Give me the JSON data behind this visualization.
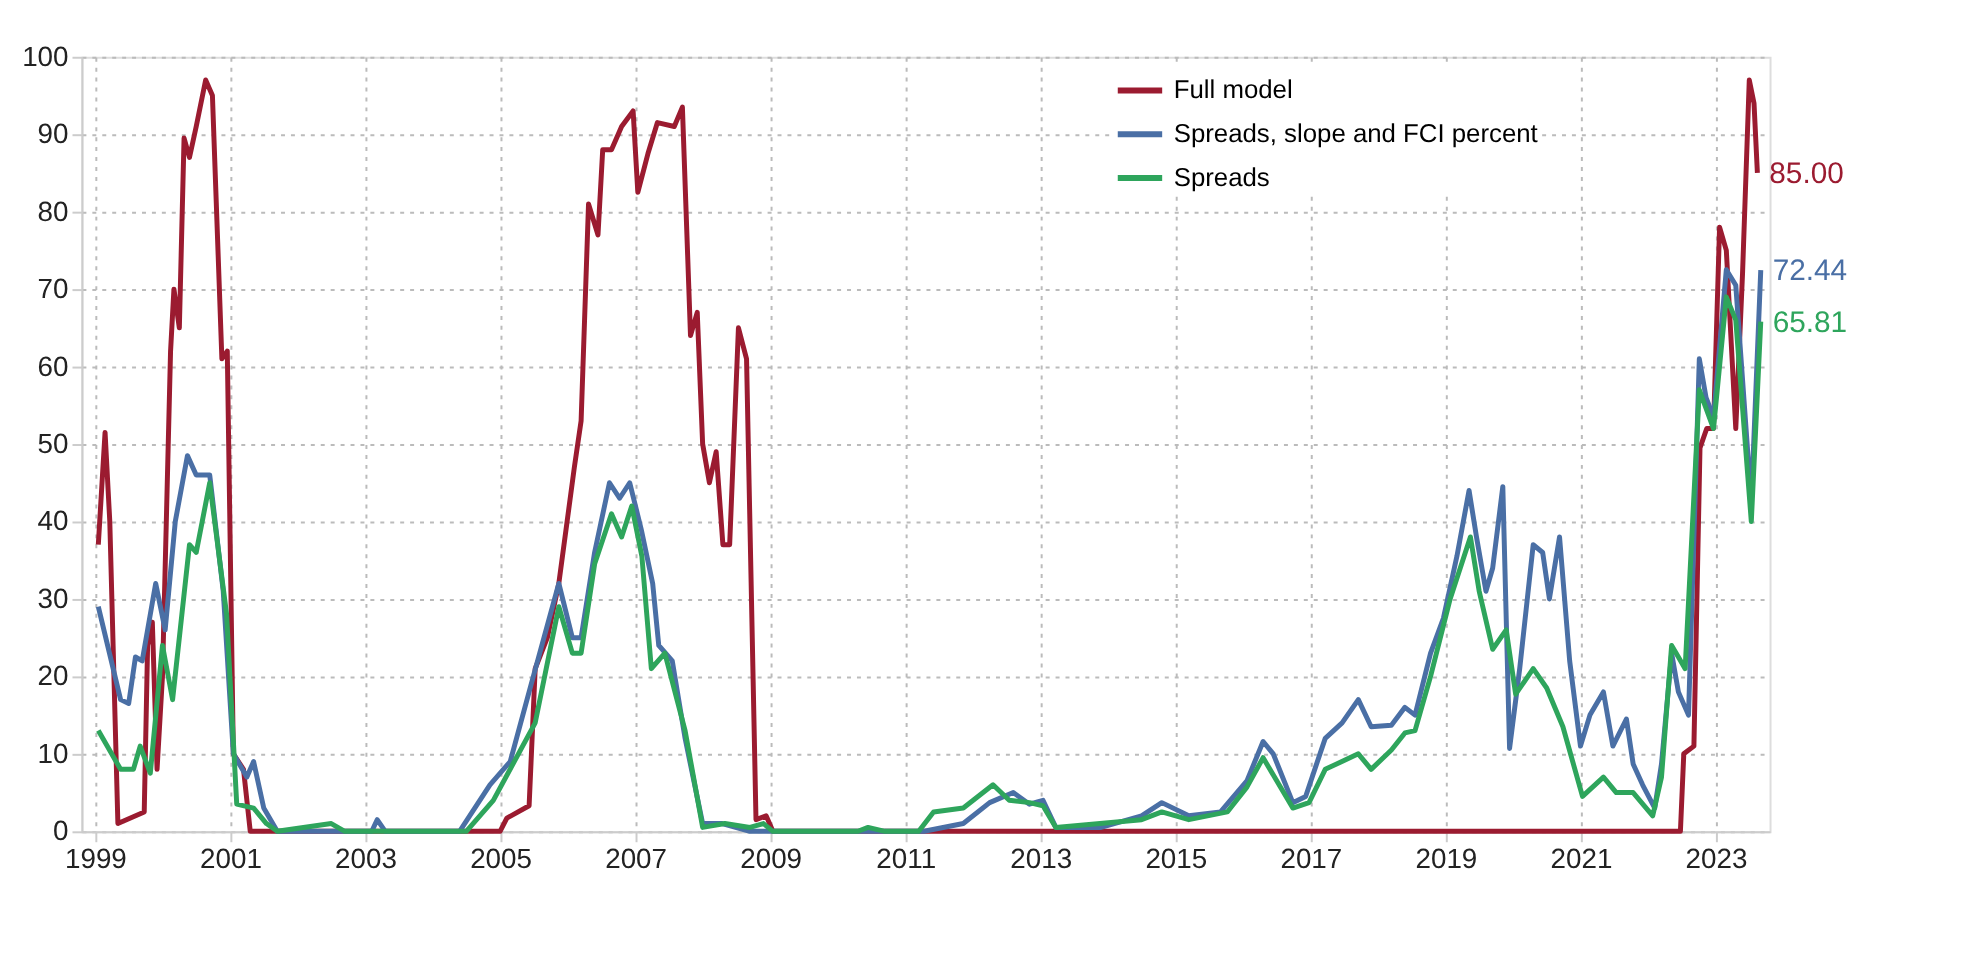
{
  "chart_data": {
    "type": "line",
    "xlim": [
      1998.8,
      2023.8
    ],
    "xticks": [
      1999,
      2001,
      2003,
      2005,
      2007,
      2009,
      2011,
      2013,
      2015,
      2017,
      2019,
      2021,
      2023
    ],
    "ylim": [
      0,
      100
    ],
    "yticks": [
      0,
      10,
      20,
      30,
      40,
      50,
      60,
      70,
      80,
      90,
      100
    ],
    "grid": true,
    "legend": "top right",
    "line_style": "solid",
    "marker": "none",
    "series": [
      {
        "name": "Full model",
        "color": "#9b1b30",
        "x": [
          1999.05,
          1999.15,
          1999.22,
          1999.34,
          1999.73,
          1999.78,
          1999.85,
          1999.92,
          2000.0,
          2000.12,
          2000.17,
          2000.25,
          2000.32,
          2000.4,
          2000.5,
          2000.64,
          2000.74,
          2000.88,
          2000.96,
          2001.05,
          2001.2,
          2001.3,
          2005.0,
          2005.1,
          2005.43,
          2005.52,
          2005.7,
          2005.87,
          2006.1,
          2006.2,
          2006.31,
          2006.45,
          2006.52,
          2006.65,
          2006.8,
          2006.97,
          2007.04,
          2007.19,
          2007.33,
          2007.58,
          2007.7,
          2007.82,
          2007.92,
          2008.0,
          2008.1,
          2008.2,
          2008.3,
          2008.4,
          2008.53,
          2008.65,
          2008.79,
          2008.94,
          2009.04,
          2022.48,
          2022.53,
          2022.68,
          2022.77,
          2022.87,
          2022.97,
          2023.06,
          2023.16,
          2023.3,
          2023.4,
          2023.5,
          2023.57,
          2023.62
        ],
        "values": [
          37,
          51.5,
          40,
          1,
          2.5,
          24,
          27,
          8,
          20,
          62,
          70,
          65,
          89.5,
          87,
          91,
          97,
          95,
          61,
          62,
          10,
          8,
          0,
          0,
          1.7,
          3.3,
          21,
          25,
          32,
          47,
          53,
          81,
          77,
          88,
          88,
          91,
          93,
          82.5,
          87.5,
          91.5,
          91,
          93.5,
          64,
          67,
          50,
          45,
          49,
          37,
          37,
          65,
          61,
          1.5,
          2,
          0,
          0,
          10,
          11,
          49.5,
          52,
          52,
          78,
          75,
          52,
          72,
          97,
          94,
          85
        ],
        "value_labels": [
          null,
          null,
          null,
          null,
          null,
          null,
          null,
          null,
          null,
          null,
          null,
          null,
          null,
          null,
          null,
          null,
          null,
          null,
          null,
          null,
          null,
          null,
          null,
          null,
          null,
          null,
          null,
          null,
          null,
          null,
          null,
          null,
          null,
          null,
          null,
          null,
          null,
          null,
          null,
          null,
          null,
          null,
          null,
          null,
          null,
          null,
          null,
          null,
          null,
          null,
          null,
          null,
          null,
          null,
          null,
          null,
          null,
          null,
          null,
          null,
          null,
          null,
          null,
          null,
          null,
          "85.00"
        ]
      },
      {
        "name": "Spreads, slope and FCI percent",
        "color": "#4a6fa5",
        "x": [
          1999.05,
          1999.38,
          1999.5,
          1999.6,
          1999.7,
          1999.9,
          2000.04,
          2000.19,
          2000.37,
          2000.5,
          2000.7,
          2000.9,
          2001.05,
          2001.25,
          2001.35,
          2001.5,
          2001.7,
          2003.1,
          2003.18,
          2003.3,
          2004.4,
          2004.85,
          2005.15,
          2005.43,
          2005.87,
          2006.07,
          2006.2,
          2006.4,
          2006.62,
          2006.77,
          2006.92,
          2007.09,
          2007.26,
          2007.35,
          2007.55,
          2007.74,
          2008.0,
          2008.29,
          2008.7,
          2011.28,
          2011.86,
          2012.25,
          2012.6,
          2012.84,
          2013.04,
          2013.23,
          2013.9,
          2014.5,
          2014.8,
          2015.2,
          2015.67,
          2016.06,
          2016.3,
          2016.45,
          2016.74,
          2016.93,
          2017.22,
          2017.47,
          2017.71,
          2017.9,
          2018.2,
          2018.4,
          2018.55,
          2018.78,
          2018.97,
          2019.17,
          2019.35,
          2019.46,
          2019.6,
          2019.7,
          2019.85,
          2019.95,
          2020.1,
          2020.3,
          2020.44,
          2020.54,
          2020.69,
          2020.84,
          2021.0,
          2021.14,
          2021.34,
          2021.48,
          2021.68,
          2021.78,
          2021.92,
          2022.1,
          2022.2,
          2022.35,
          2022.45,
          2022.6,
          2022.76,
          2022.86,
          2022.97,
          2023.16,
          2023.3,
          2023.53,
          2023.67
        ],
        "values": [
          29,
          17,
          16.5,
          22.5,
          22,
          32,
          26,
          40,
          48.5,
          46,
          46,
          31,
          10,
          7,
          9,
          3,
          0,
          0,
          1.5,
          0,
          0,
          6,
          9,
          18,
          32,
          25,
          25,
          36,
          45,
          43,
          45,
          39,
          32,
          24,
          22,
          12,
          1,
          1,
          0,
          0,
          1,
          3.7,
          5,
          3.5,
          4,
          0.5,
          0.5,
          2,
          3.7,
          2,
          2.5,
          6.5,
          11.6,
          10,
          3.7,
          4.5,
          12,
          14,
          17,
          13.5,
          13.7,
          16,
          15,
          23,
          27.5,
          35.5,
          44,
          38,
          31,
          34,
          44.5,
          10.7,
          21,
          37,
          36,
          30,
          38,
          22,
          11,
          15,
          18,
          11,
          14.5,
          8.7,
          6,
          3,
          8.7,
          23,
          18,
          15,
          61,
          56,
          53.5,
          72.5,
          70.5,
          42.5,
          72.44
        ],
        "value_labels": [
          null,
          null,
          null,
          null,
          null,
          null,
          null,
          null,
          null,
          null,
          null,
          null,
          null,
          null,
          null,
          null,
          null,
          null,
          null,
          null,
          null,
          null,
          null,
          null,
          null,
          null,
          null,
          null,
          null,
          null,
          null,
          null,
          null,
          null,
          null,
          null,
          null,
          null,
          null,
          null,
          null,
          null,
          null,
          null,
          null,
          null,
          null,
          null,
          null,
          null,
          null,
          null,
          null,
          null,
          null,
          null,
          null,
          null,
          null,
          null,
          null,
          null,
          null,
          null,
          null,
          null,
          null,
          null,
          null,
          null,
          null,
          null,
          null,
          null,
          null,
          null,
          null,
          null,
          null,
          null,
          null,
          null,
          null,
          null,
          null,
          null,
          null,
          null,
          null,
          null,
          null,
          null,
          null,
          null,
          null,
          null,
          "72.44"
        ]
      },
      {
        "name": "Spreads",
        "color": "#2ea55c",
        "x": [
          1999.05,
          1999.38,
          1999.57,
          1999.67,
          1999.82,
          2000.0,
          2000.15,
          2000.4,
          2000.5,
          2000.7,
          2000.95,
          2001.1,
          2001.35,
          2001.54,
          2001.7,
          2002.5,
          2002.7,
          2004.5,
          2004.9,
          2005.52,
          2005.87,
          2006.07,
          2006.2,
          2006.4,
          2006.65,
          2006.8,
          2006.95,
          2007.1,
          2007.24,
          2007.44,
          2007.74,
          2008.0,
          2008.33,
          2008.7,
          2008.9,
          2009.04,
          2010.3,
          2010.45,
          2010.7,
          2011.2,
          2011.42,
          2011.86,
          2012.3,
          2012.54,
          2012.84,
          2013.04,
          2013.23,
          2014.5,
          2014.8,
          2015.2,
          2015.77,
          2016.06,
          2016.3,
          2016.74,
          2016.98,
          2017.22,
          2017.71,
          2017.9,
          2018.2,
          2018.4,
          2018.55,
          2018.78,
          2019.07,
          2019.37,
          2019.5,
          2019.7,
          2019.9,
          2020.04,
          2020.3,
          2020.5,
          2020.74,
          2021.03,
          2021.34,
          2021.53,
          2021.78,
          2022.07,
          2022.2,
          2022.35,
          2022.45,
          2022.55,
          2022.76,
          2022.97,
          2023.16,
          2023.3,
          2023.53,
          2023.67
        ],
        "values": [
          13,
          8,
          8,
          11,
          7.5,
          24,
          17,
          37,
          36,
          45,
          28,
          3.5,
          3,
          1,
          0,
          1,
          0,
          0,
          4,
          14,
          29,
          23,
          23,
          34.5,
          41,
          38,
          42,
          35.5,
          21,
          23,
          13,
          0.5,
          1,
          0.5,
          1,
          0,
          0,
          0.5,
          0,
          0,
          2.5,
          3,
          6,
          4,
          3.7,
          3.3,
          0.5,
          1.5,
          2.5,
          1.5,
          2.5,
          5.7,
          9.5,
          3,
          3.7,
          8,
          10,
          8,
          10.5,
          12.7,
          13,
          20,
          30,
          38,
          31,
          23.5,
          26,
          17.7,
          21,
          18.5,
          13.5,
          4.5,
          7,
          5,
          5,
          2,
          7,
          24,
          22.5,
          21,
          57,
          52,
          69,
          66,
          40,
          65.81
        ],
        "value_labels": [
          null,
          null,
          null,
          null,
          null,
          null,
          null,
          null,
          null,
          null,
          null,
          null,
          null,
          null,
          null,
          null,
          null,
          null,
          null,
          null,
          null,
          null,
          null,
          null,
          null,
          null,
          null,
          null,
          null,
          null,
          null,
          null,
          null,
          null,
          null,
          null,
          null,
          null,
          null,
          null,
          null,
          null,
          null,
          null,
          null,
          null,
          null,
          null,
          null,
          null,
          null,
          null,
          null,
          null,
          null,
          null,
          null,
          null,
          null,
          null,
          null,
          null,
          null,
          null,
          null,
          null,
          null,
          null,
          null,
          null,
          null,
          null,
          null,
          null,
          null,
          null,
          null,
          null,
          null,
          null,
          null,
          null,
          null,
          null,
          null,
          "65.81"
        ]
      }
    ]
  }
}
